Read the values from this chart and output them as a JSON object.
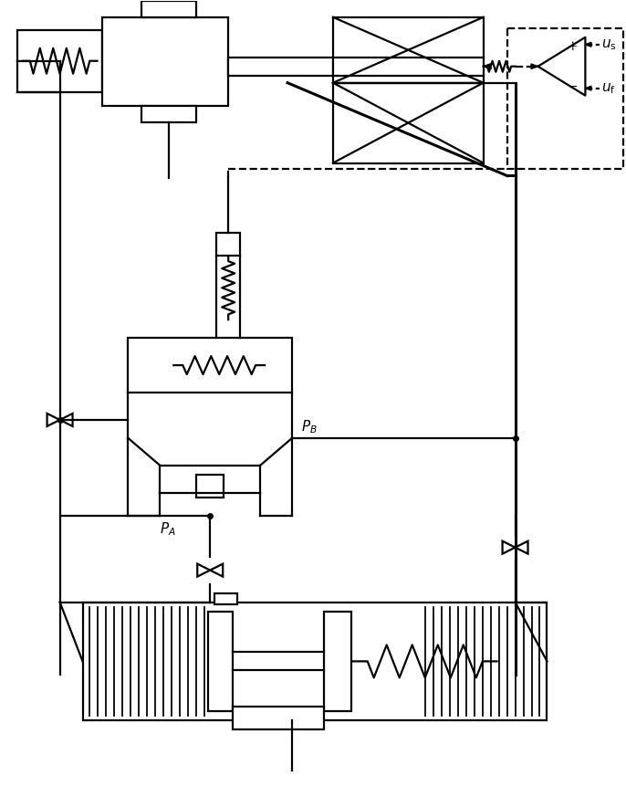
{
  "bg_color": "#ffffff",
  "line_color": "#000000",
  "lw": 1.6,
  "lw_thick": 2.2,
  "fig_w": 6.86,
  "fig_h": 8.61,
  "dpi": 100
}
